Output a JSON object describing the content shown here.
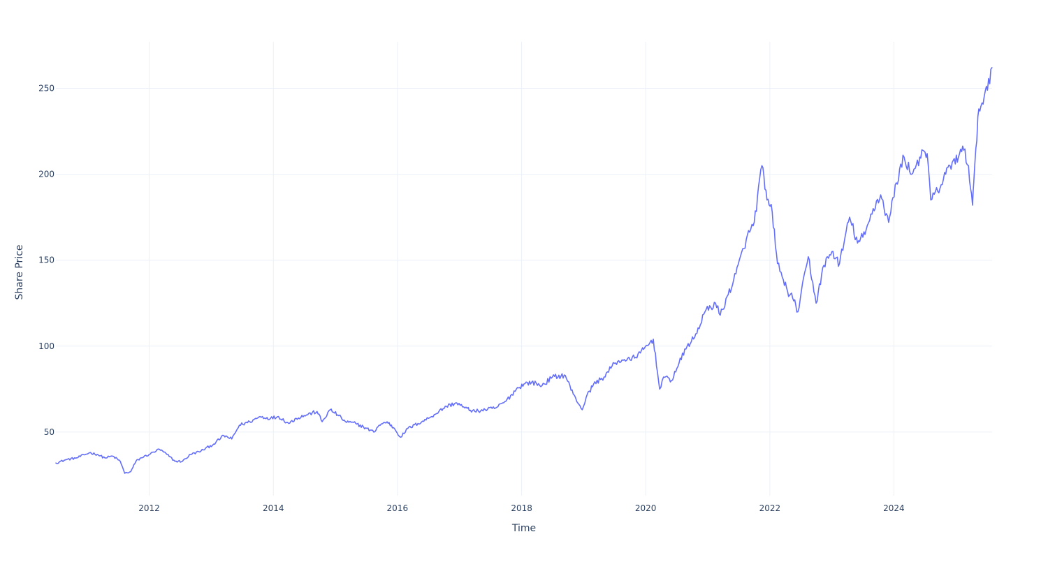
{
  "chart_data": {
    "type": "line",
    "title": "",
    "xlabel": "Time",
    "ylabel": "Share Price",
    "xlim": [
      "2010-07-01",
      "2025-08-01"
    ],
    "ylim": [
      13,
      277
    ],
    "grid": true,
    "legend": "none",
    "x_ticks": [
      {
        "value": "2012-01-01",
        "label": "2012"
      },
      {
        "value": "2014-01-01",
        "label": "2014"
      },
      {
        "value": "2016-01-01",
        "label": "2016"
      },
      {
        "value": "2018-01-01",
        "label": "2018"
      },
      {
        "value": "2020-01-01",
        "label": "2020"
      },
      {
        "value": "2022-01-01",
        "label": "2022"
      },
      {
        "value": "2024-01-01",
        "label": "2024"
      }
    ],
    "y_ticks": [
      {
        "value": 50,
        "label": "50"
      },
      {
        "value": 100,
        "label": "100"
      },
      {
        "value": 150,
        "label": "150"
      },
      {
        "value": 200,
        "label": "200"
      },
      {
        "value": 250,
        "label": "250"
      }
    ],
    "series": [
      {
        "color": "#636efa",
        "x": [
          "2010-07-01",
          "2010-09-01",
          "2010-11-01",
          "2011-01-15",
          "2011-03-01",
          "2011-04-15",
          "2011-06-01",
          "2011-07-15",
          "2011-08-10",
          "2011-09-15",
          "2011-10-15",
          "2011-11-15",
          "2012-01-01",
          "2012-03-01",
          "2012-04-15",
          "2012-06-01",
          "2012-07-15",
          "2012-09-01",
          "2012-11-01",
          "2013-01-15",
          "2013-03-15",
          "2013-05-01",
          "2013-06-15",
          "2013-08-15",
          "2013-10-15",
          "2013-12-15",
          "2014-02-01",
          "2014-04-01",
          "2014-05-15",
          "2014-07-15",
          "2014-09-15",
          "2014-10-15",
          "2014-12-01",
          "2015-01-15",
          "2015-03-01",
          "2015-05-01",
          "2015-06-15",
          "2015-08-15",
          "2015-09-15",
          "2015-11-01",
          "2015-12-15",
          "2016-01-20",
          "2016-03-01",
          "2016-05-01",
          "2016-07-01",
          "2016-09-01",
          "2016-10-15",
          "2016-12-15",
          "2017-02-01",
          "2017-04-01",
          "2017-06-01",
          "2017-08-01",
          "2017-10-01",
          "2017-12-01",
          "2018-01-15",
          "2018-03-01",
          "2018-05-01",
          "2018-07-01",
          "2018-09-15",
          "2018-11-01",
          "2018-12-24",
          "2019-01-15",
          "2019-03-01",
          "2019-05-01",
          "2019-07-01",
          "2019-08-15",
          "2019-10-01",
          "2019-12-01",
          "2020-02-15",
          "2020-03-23",
          "2020-04-15",
          "2020-06-01",
          "2020-07-15",
          "2020-09-01",
          "2020-10-15",
          "2020-12-15",
          "2021-02-15",
          "2021-03-15",
          "2021-05-01",
          "2021-06-15",
          "2021-08-15",
          "2021-10-01",
          "2021-11-15",
          "2021-12-15",
          "2022-01-15",
          "2022-02-15",
          "2022-03-15",
          "2022-04-15",
          "2022-05-15",
          "2022-06-15",
          "2022-08-15",
          "2022-09-30",
          "2022-11-15",
          "2023-01-01",
          "2023-02-15",
          "2023-04-15",
          "2023-06-01",
          "2023-07-15",
          "2023-09-01",
          "2023-10-15",
          "2023-12-01",
          "2024-01-15",
          "2024-03-01",
          "2024-04-15",
          "2024-06-01",
          "2024-07-15",
          "2024-08-05",
          "2024-09-15",
          "2024-11-01",
          "2024-12-15",
          "2025-01-15",
          "2025-02-15",
          "2025-03-15",
          "2025-04-08",
          "2025-04-15",
          "2025-05-15",
          "2025-06-15",
          "2025-07-31"
        ],
        "y": [
          32,
          34,
          35,
          38,
          37,
          35,
          36,
          33,
          26,
          27,
          33,
          35,
          37,
          40,
          37,
          33,
          33,
          37,
          39,
          43,
          48,
          46,
          54,
          56,
          59,
          58,
          59,
          55,
          58,
          60,
          62,
          56,
          63,
          60,
          56,
          55,
          53,
          50,
          54,
          56,
          52,
          47,
          52,
          55,
          58,
          62,
          65,
          67,
          64,
          62,
          63,
          64,
          68,
          75,
          78,
          79,
          77,
          82,
          83,
          72,
          63,
          70,
          78,
          82,
          90,
          92,
          92,
          96,
          104,
          75,
          82,
          80,
          90,
          100,
          105,
          120,
          125,
          118,
          130,
          142,
          162,
          172,
          205,
          185,
          178,
          148,
          140,
          132,
          128,
          120,
          152,
          125,
          147,
          155,
          148,
          175,
          160,
          165,
          180,
          188,
          172,
          195,
          210,
          200,
          210,
          212,
          185,
          190,
          200,
          208,
          210,
          214,
          205,
          182,
          195,
          238,
          245,
          262
        ]
      }
    ]
  }
}
